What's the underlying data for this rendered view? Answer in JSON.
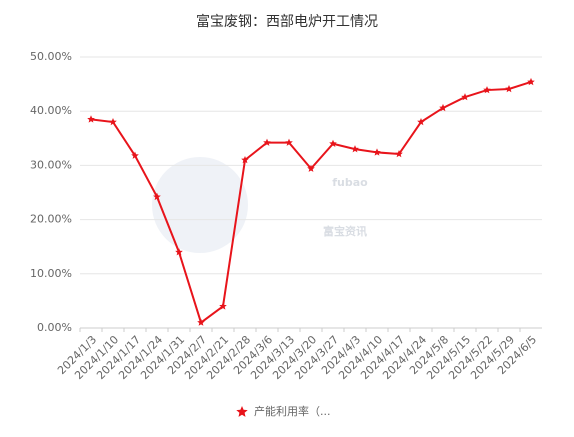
{
  "chart_data": {
    "type": "line",
    "title": "富宝废钢：西部电炉开工情况",
    "watermark": [
      "fubao",
      "富宝资讯"
    ],
    "categories": [
      "2024/1/3",
      "2024/1/10",
      "2024/1/17",
      "2024/1/24",
      "2024/1/31",
      "2024/2/7",
      "2024/2/21",
      "2024/2/28",
      "2024/3/6",
      "2024/3/13",
      "2024/3/20",
      "2024/3/27",
      "2024/4/3",
      "2024/4/10",
      "2024/4/17",
      "2024/4/24",
      "2024/5/8",
      "2024/5/15",
      "2024/5/22",
      "2024/5/29",
      "2024/6/5"
    ],
    "series": [
      {
        "name": "产能利用率（...",
        "color": "#e8141b",
        "values": [
          38.5,
          38.0,
          31.8,
          24.2,
          14.0,
          1.0,
          4.0,
          31.0,
          34.2,
          34.2,
          29.4,
          34.0,
          33.0,
          32.4,
          32.1,
          38.0,
          40.6,
          42.6,
          43.9,
          44.1,
          45.4
        ]
      }
    ],
    "ylim": [
      0,
      50
    ],
    "yticks": [
      {
        "value": 0,
        "label": "0.00%"
      },
      {
        "value": 10,
        "label": "10.00%"
      },
      {
        "value": 20,
        "label": "20.00%"
      },
      {
        "value": 30,
        "label": "30.00%"
      },
      {
        "value": 40,
        "label": "40.00%"
      },
      {
        "value": 50,
        "label": "50.00%"
      }
    ],
    "grid": true
  }
}
